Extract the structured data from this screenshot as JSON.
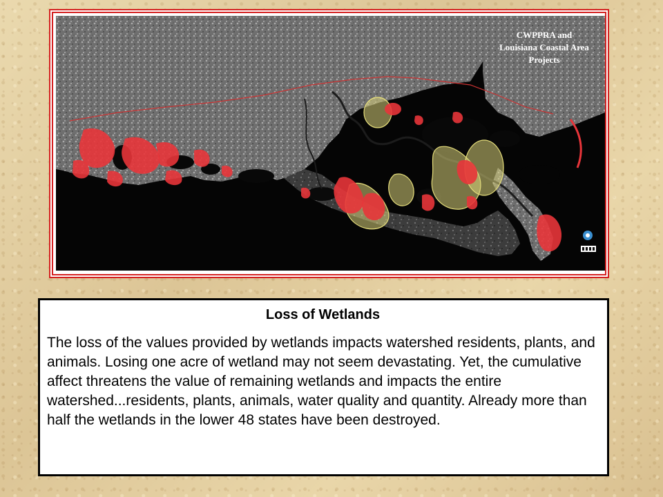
{
  "map": {
    "title_lines": [
      "CWPPRA and",
      "Louisiana Coastal Area",
      "Projects"
    ],
    "colors": {
      "background": "#050505",
      "land": "#7a7a7a",
      "cwppra_projects": "#e8353a",
      "lca_projects": "#d9d27a",
      "boundary_line": "#cc3333"
    },
    "icons": [
      "usgs-logo-icon",
      "agency-seal-icon"
    ]
  },
  "info": {
    "title": "Loss of Wetlands",
    "body": "The loss of the values provided by wetlands impacts watershed residents, plants, and animals. Losing one acre of wetland may not seem devastating. Yet, the cumulative affect threatens the value of remaining wetlands and impacts the entire watershed...residents, plants, animals, water quality and quantity.   Already more than half the wetlands in the lower 48 states have been destroyed."
  }
}
